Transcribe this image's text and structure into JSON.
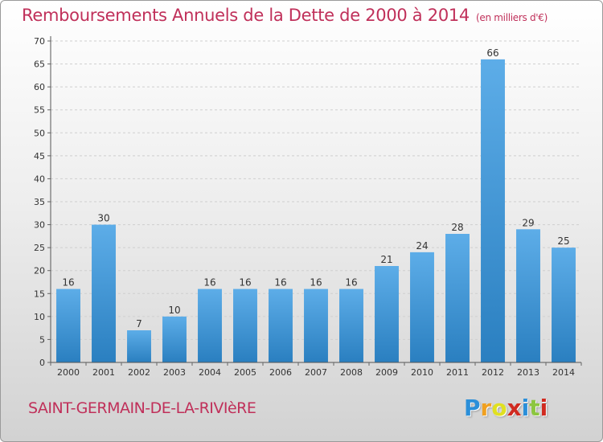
{
  "chart_data": {
    "type": "bar",
    "title": "Remboursements Annuels de la Dette de 2000 à 2014",
    "unit_label": "(en milliers d'€)",
    "xlabel": "",
    "ylabel": "",
    "ylim": [
      0,
      70
    ],
    "yticks": [
      0,
      5,
      10,
      15,
      20,
      25,
      30,
      35,
      40,
      45,
      50,
      55,
      60,
      65,
      70
    ],
    "categories": [
      "2000",
      "2001",
      "2002",
      "2003",
      "2004",
      "2005",
      "2006",
      "2007",
      "2008",
      "2009",
      "2010",
      "2011",
      "2012",
      "2013",
      "2014"
    ],
    "values": [
      16,
      30,
      7,
      10,
      16,
      16,
      16,
      16,
      16,
      21,
      24,
      28,
      66,
      29,
      25
    ],
    "grid": true,
    "bar_color_light": "#5dade8",
    "bar_color_dark": "#2a7fc0"
  },
  "location": "SAINT-GERMAIN-DE-LA-RIVIèRE",
  "brand": {
    "letters": [
      "P",
      "r",
      "o",
      "x",
      "i",
      "t",
      "i"
    ],
    "colors": [
      "#2b8fd9",
      "#f0a020",
      "#e0e020",
      "#d02a20",
      "#2b8fd9",
      "#8cc63f",
      "#d02a20"
    ]
  }
}
